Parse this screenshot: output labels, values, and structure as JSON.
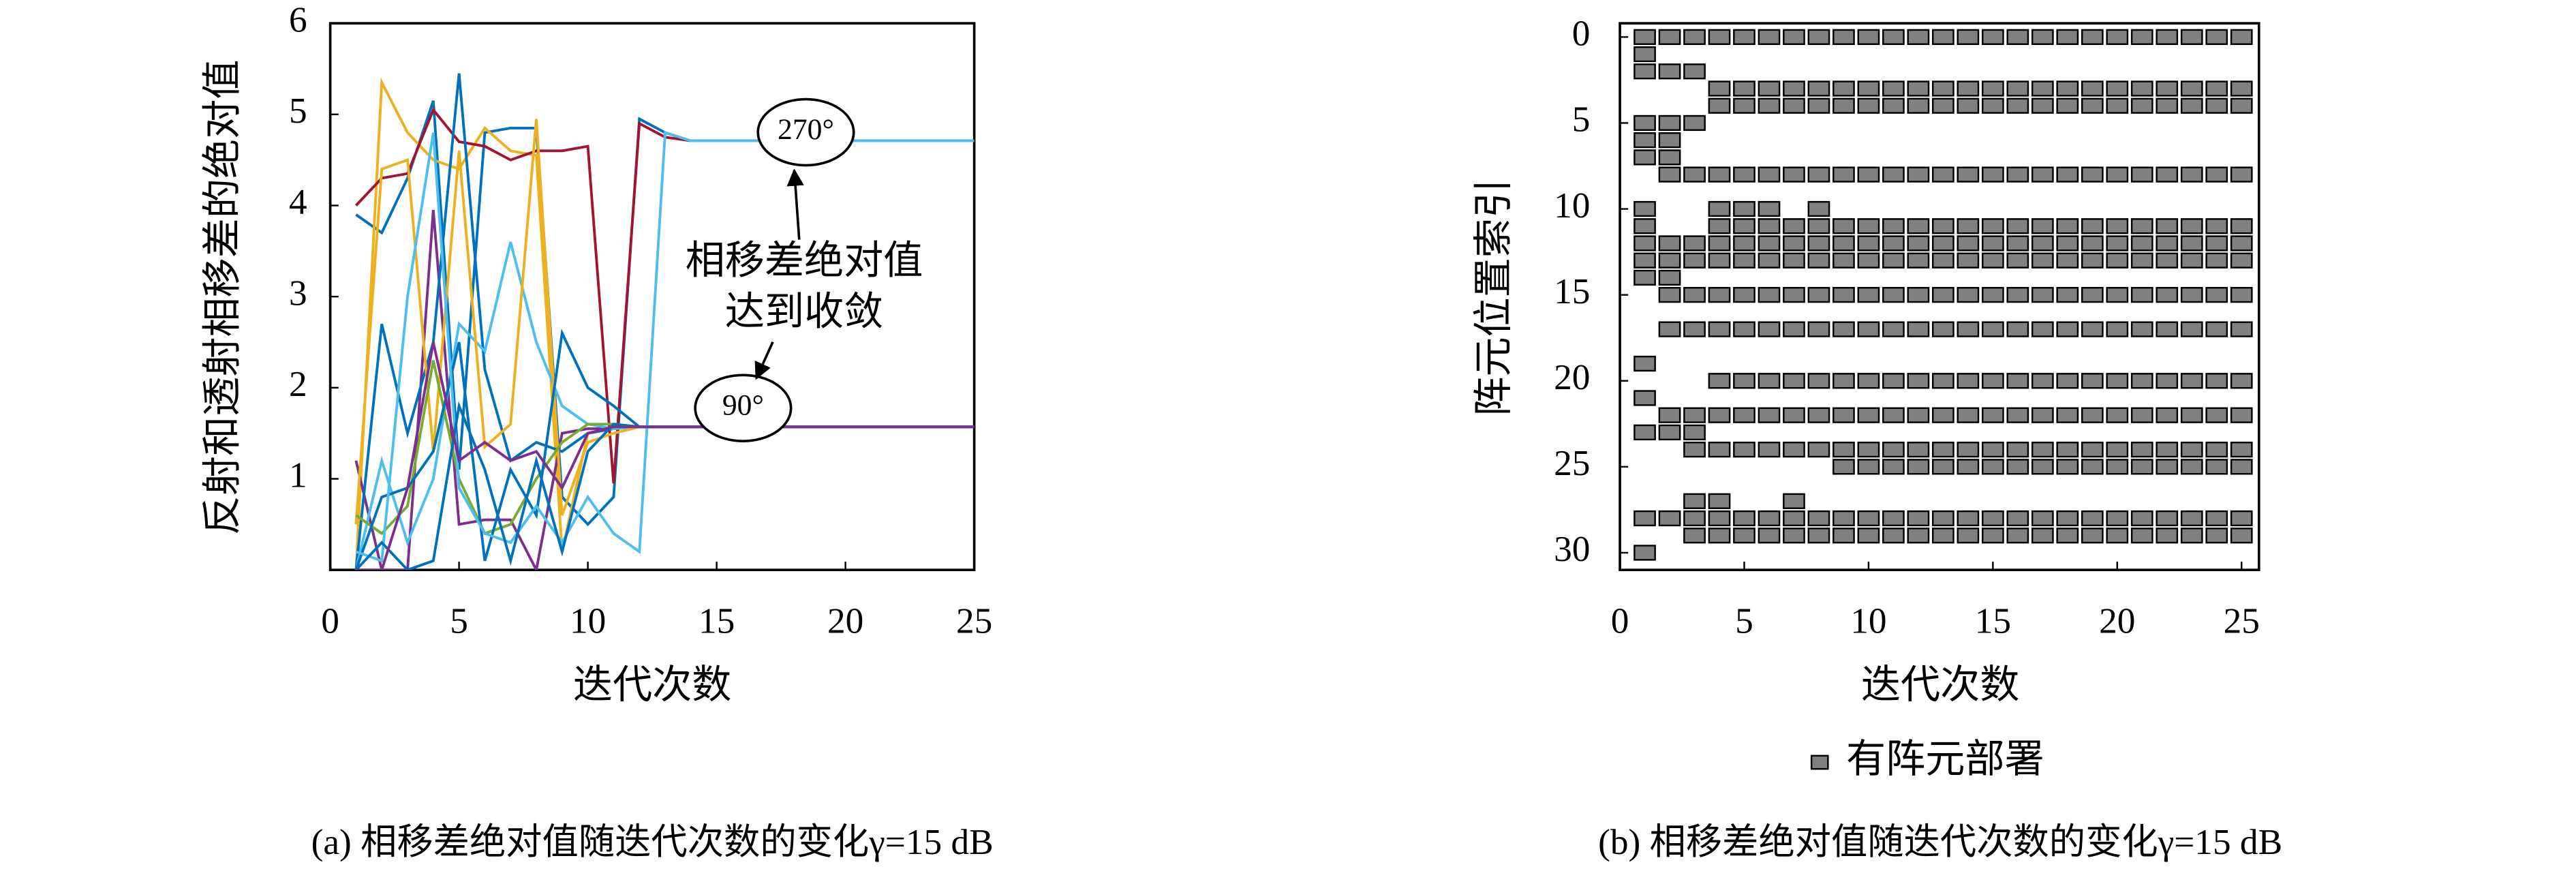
{
  "chart_data": [
    {
      "type": "line",
      "xlabel": "迭代次数",
      "ylabel": "反射和透射相移差的绝对值",
      "caption": "(a) 相移差绝对值随迭代次数的变化γ=15 dB",
      "annotations": [
        "270°",
        "90°",
        "相移差绝对值",
        "达到收敛"
      ],
      "xlim": [
        0,
        25
      ],
      "ylim": [
        0,
        6
      ],
      "xticks": [
        0,
        5,
        10,
        15,
        20,
        25
      ],
      "yticks": [
        1,
        2,
        3,
        4,
        5,
        6
      ],
      "x": [
        1,
        2,
        3,
        4,
        5,
        6,
        7,
        8,
        9,
        10,
        11,
        12,
        13,
        14,
        15,
        16,
        17,
        18,
        19,
        20,
        21,
        22,
        23,
        24,
        25
      ],
      "series": [
        {
          "color": "#0072BD",
          "values": [
            3.9,
            3.7,
            4.3,
            5.15,
            1.1,
            4.8,
            4.85,
            4.85,
            0.8,
            0.5,
            0.8,
            4.95,
            4.8,
            4.71,
            4.71,
            4.71,
            4.71,
            4.71,
            4.71,
            4.71,
            4.71,
            4.71,
            4.71,
            4.71,
            4.71
          ]
        },
        {
          "color": "#EDB120",
          "values": [
            0,
            5.35,
            4.8,
            4.5,
            4.4,
            4.85,
            4.6,
            4.55,
            0.2,
            1.5,
            1.55,
            1.57,
            1.57,
            1.57,
            1.57,
            1.57,
            1.57,
            1.57,
            1.57,
            1.57,
            1.57,
            1.57,
            1.57,
            1.57,
            1.57
          ]
        },
        {
          "color": "#A2142F",
          "values": [
            4.0,
            4.3,
            4.35,
            5.05,
            4.7,
            4.65,
            4.5,
            4.6,
            4.6,
            4.65,
            0.95,
            4.9,
            4.75,
            4.71,
            4.71,
            4.71,
            4.71,
            4.71,
            4.71,
            4.71,
            4.71,
            4.71,
            4.71,
            4.71,
            4.71
          ]
        },
        {
          "color": "#7E2F8E",
          "values": [
            1.2,
            0,
            0,
            3.95,
            0.5,
            0.55,
            0.55,
            0,
            1.5,
            1.55,
            1.55,
            1.57,
            1.57,
            1.57,
            1.57,
            1.57,
            1.57,
            1.57,
            1.57,
            1.57,
            1.57,
            1.57,
            1.57,
            1.57,
            1.57
          ]
        },
        {
          "color": "#0072BD",
          "values": [
            0,
            2.7,
            1.5,
            2.5,
            5.45,
            2.2,
            1.2,
            1.4,
            1.3,
            1.5,
            1.55,
            1.57,
            1.57,
            1.57,
            1.57,
            1.57,
            1.57,
            1.57,
            1.57,
            1.57,
            1.57,
            1.57,
            1.57,
            1.57,
            1.57
          ]
        },
        {
          "color": "#4DBEEE",
          "values": [
            0,
            1.2,
            0.3,
            1.0,
            2.7,
            2.4,
            3.6,
            2.5,
            1.8,
            1.6,
            1.55,
            1.57,
            1.57,
            1.57,
            1.57,
            1.57,
            1.57,
            1.57,
            1.57,
            1.57,
            1.57,
            1.57,
            1.57,
            1.57,
            1.57
          ]
        },
        {
          "color": "#EDB120",
          "values": [
            0.5,
            4.4,
            4.5,
            1.3,
            4.6,
            1.35,
            1.6,
            4.95,
            0.6,
            1.4,
            1.5,
            1.57,
            1.57,
            1.57,
            1.57,
            1.57,
            1.57,
            1.57,
            1.57,
            1.57,
            1.57,
            1.57,
            1.57,
            1.57,
            1.57
          ]
        },
        {
          "color": "#77AC30",
          "values": [
            0.6,
            0.4,
            0.7,
            2.3,
            1.0,
            0.4,
            0.5,
            1.0,
            1.4,
            1.6,
            1.6,
            1.57,
            1.57,
            1.57,
            1.57,
            1.57,
            1.57,
            1.57,
            1.57,
            1.57,
            1.57,
            1.57,
            1.57,
            1.57,
            1.57
          ]
        },
        {
          "color": "#0072BD",
          "values": [
            0,
            0.8,
            0.9,
            1.3,
            2.5,
            0.1,
            1.1,
            0.6,
            2.6,
            2.0,
            1.8,
            1.57,
            1.57,
            1.57,
            1.57,
            1.57,
            1.57,
            1.57,
            1.57,
            1.57,
            1.57,
            1.57,
            1.57,
            1.57,
            1.57
          ]
        },
        {
          "color": "#4DBEEE",
          "values": [
            0.2,
            0.1,
            3.0,
            4.8,
            0.9,
            0.4,
            0.3,
            0.7,
            0.3,
            0.8,
            0.4,
            0.2,
            4.8,
            4.71,
            4.71,
            4.71,
            4.71,
            4.71,
            4.71,
            4.71,
            4.71,
            4.71,
            4.71,
            4.71,
            4.71
          ]
        },
        {
          "color": "#0072BD",
          "values": [
            0,
            0.3,
            0,
            0.1,
            1.8,
            1.1,
            0.1,
            1.2,
            0.2,
            1.3,
            1.6,
            1.57,
            1.57,
            1.57,
            1.57,
            1.57,
            1.57,
            1.57,
            1.57,
            1.57,
            1.57,
            1.57,
            1.57,
            1.57,
            1.57
          ]
        },
        {
          "color": "#7E2F8E",
          "values": [
            0,
            0,
            0.9,
            2.5,
            1.2,
            1.4,
            1.2,
            1.3,
            0.9,
            1.5,
            1.57,
            1.57,
            1.57,
            1.57,
            1.57,
            1.57,
            1.57,
            1.57,
            1.57,
            1.57,
            1.57,
            1.57,
            1.57,
            1.57,
            1.57
          ]
        }
      ]
    },
    {
      "type": "grid",
      "xlabel": "迭代次数",
      "ylabel": "阵元位置索引",
      "caption": "(b) 相移差绝对值随迭代次数的变化γ=15 dB",
      "legend": "有阵元部署",
      "color": "#808080",
      "xlim": [
        0,
        25.7
      ],
      "ylim": [
        -0.8,
        31
      ],
      "y_reversed": true,
      "xticks": [
        0,
        5,
        10,
        15,
        20,
        25
      ],
      "yticks": [
        0,
        5,
        10,
        15,
        20,
        25,
        30
      ],
      "rows": [
        {
          "index": 0,
          "iterations": [
            1,
            2,
            3,
            4,
            5,
            6,
            7,
            8,
            9,
            10,
            11,
            12,
            13,
            14,
            15,
            16,
            17,
            18,
            19,
            20,
            21,
            22,
            23,
            24,
            25
          ]
        },
        {
          "index": 1,
          "iterations": [
            1
          ]
        },
        {
          "index": 2,
          "iterations": [
            1,
            2,
            3
          ]
        },
        {
          "index": 3,
          "iterations": [
            4,
            5,
            6,
            7,
            8,
            9,
            10,
            11,
            12,
            13,
            14,
            15,
            16,
            17,
            18,
            19,
            20,
            21,
            22,
            23,
            24,
            25
          ]
        },
        {
          "index": 4,
          "iterations": [
            4,
            5,
            6,
            7,
            8,
            9,
            10,
            11,
            12,
            13,
            14,
            15,
            16,
            17,
            18,
            19,
            20,
            21,
            22,
            23,
            24,
            25
          ]
        },
        {
          "index": 5,
          "iterations": [
            1,
            2,
            3
          ]
        },
        {
          "index": 6,
          "iterations": [
            1,
            2
          ]
        },
        {
          "index": 7,
          "iterations": [
            1,
            2
          ]
        },
        {
          "index": 8,
          "iterations": [
            2,
            3,
            4,
            5,
            6,
            7,
            8,
            9,
            10,
            11,
            12,
            13,
            14,
            15,
            16,
            17,
            18,
            19,
            20,
            21,
            22,
            23,
            24,
            25
          ]
        },
        {
          "index": 10,
          "iterations": [
            1,
            4,
            5,
            6,
            8
          ]
        },
        {
          "index": 11,
          "iterations": [
            1,
            4,
            5,
            6,
            7,
            8,
            9,
            10,
            11,
            12,
            13,
            14,
            15,
            16,
            17,
            18,
            19,
            20,
            21,
            22,
            23,
            24,
            25
          ]
        },
        {
          "index": 12,
          "iterations": [
            1,
            2,
            3,
            4,
            5,
            6,
            7,
            8,
            9,
            10,
            11,
            12,
            13,
            14,
            15,
            16,
            17,
            18,
            19,
            20,
            21,
            22,
            23,
            24,
            25
          ]
        },
        {
          "index": 13,
          "iterations": [
            1,
            2,
            3,
            4,
            5,
            6,
            7,
            8,
            9,
            10,
            11,
            12,
            13,
            14,
            15,
            16,
            17,
            18,
            19,
            20,
            21,
            22,
            23,
            24,
            25
          ]
        },
        {
          "index": 14,
          "iterations": [
            1,
            2
          ]
        },
        {
          "index": 15,
          "iterations": [
            2,
            3,
            4,
            5,
            6,
            7,
            8,
            9,
            10,
            11,
            12,
            13,
            14,
            15,
            16,
            17,
            18,
            19,
            20,
            21,
            22,
            23,
            24,
            25
          ]
        },
        {
          "index": 17,
          "iterations": [
            2,
            3,
            4,
            5,
            6,
            7,
            8,
            9,
            10,
            11,
            12,
            13,
            14,
            15,
            16,
            17,
            18,
            19,
            20,
            21,
            22,
            23,
            24,
            25
          ]
        },
        {
          "index": 19,
          "iterations": [
            1
          ]
        },
        {
          "index": 20,
          "iterations": [
            4,
            5,
            6,
            7,
            8,
            9,
            10,
            11,
            12,
            13,
            14,
            15,
            16,
            17,
            18,
            19,
            20,
            21,
            22,
            23,
            24,
            25
          ]
        },
        {
          "index": 21,
          "iterations": [
            1
          ]
        },
        {
          "index": 22,
          "iterations": [
            2,
            3,
            4,
            5,
            6,
            7,
            8,
            9,
            10,
            11,
            12,
            13,
            14,
            15,
            16,
            17,
            18,
            19,
            20,
            21,
            22,
            23,
            24,
            25
          ]
        },
        {
          "index": 23,
          "iterations": [
            1,
            2,
            3
          ]
        },
        {
          "index": 24,
          "iterations": [
            3,
            4,
            5,
            6,
            7,
            8,
            9,
            10,
            11,
            12,
            13,
            14,
            15,
            16,
            17,
            18,
            19,
            20,
            21,
            22,
            23,
            24,
            25
          ]
        },
        {
          "index": 25,
          "iterations": [
            9,
            10,
            11,
            12,
            13,
            14,
            15,
            16,
            17,
            18,
            19,
            20,
            21,
            22,
            23,
            24,
            25
          ]
        },
        {
          "index": 27,
          "iterations": [
            3,
            4,
            7
          ]
        },
        {
          "index": 28,
          "iterations": [
            1,
            2,
            3,
            4,
            5,
            6,
            7,
            8,
            9,
            10,
            11,
            12,
            13,
            14,
            15,
            16,
            17,
            18,
            19,
            20,
            21,
            22,
            23,
            24,
            25
          ]
        },
        {
          "index": 29,
          "iterations": [
            3,
            4,
            5,
            6,
            7,
            8,
            9,
            10,
            11,
            12,
            13,
            14,
            15,
            16,
            17,
            18,
            19,
            20,
            21,
            22,
            23,
            24,
            25
          ]
        },
        {
          "index": 30,
          "iterations": [
            1
          ]
        }
      ]
    }
  ]
}
